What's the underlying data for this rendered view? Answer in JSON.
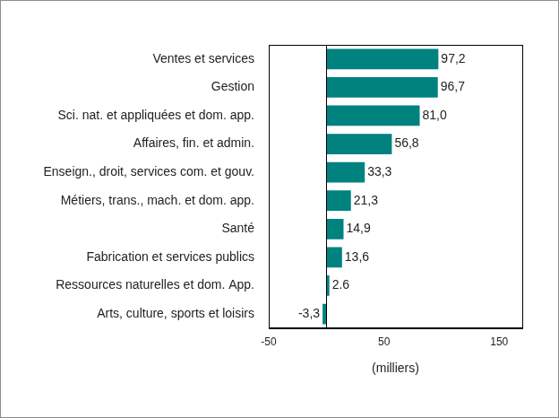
{
  "chart_data": {
    "type": "bar",
    "orientation": "horizontal",
    "categories": [
      "Ventes et services",
      "Gestion",
      "Sci. nat. et appliquées et dom. app.",
      "Affaires, fin. et admin.",
      "Enseign., droit, services com. et gouv.",
      "Métiers, trans., mach. et dom. app.",
      "Santé",
      "Fabrication et services publics",
      "Ressources naturelles et dom. App.",
      "Arts, culture, sports et loisirs"
    ],
    "values": [
      97.2,
      96.7,
      81.0,
      56.8,
      33.3,
      21.3,
      14.9,
      13.6,
      2.6,
      -3.3
    ],
    "value_labels": [
      "97,2",
      "96,7",
      "81,0",
      "56,8",
      "33,3",
      "21,3",
      "14,9",
      "13,6",
      "2.6",
      "-3,3"
    ],
    "color": "#00827f",
    "x_label": "(milliers)",
    "xlim": [
      -50,
      170
    ],
    "xticks": [
      -50,
      50,
      150
    ],
    "grid": false,
    "data_labels": true
  }
}
